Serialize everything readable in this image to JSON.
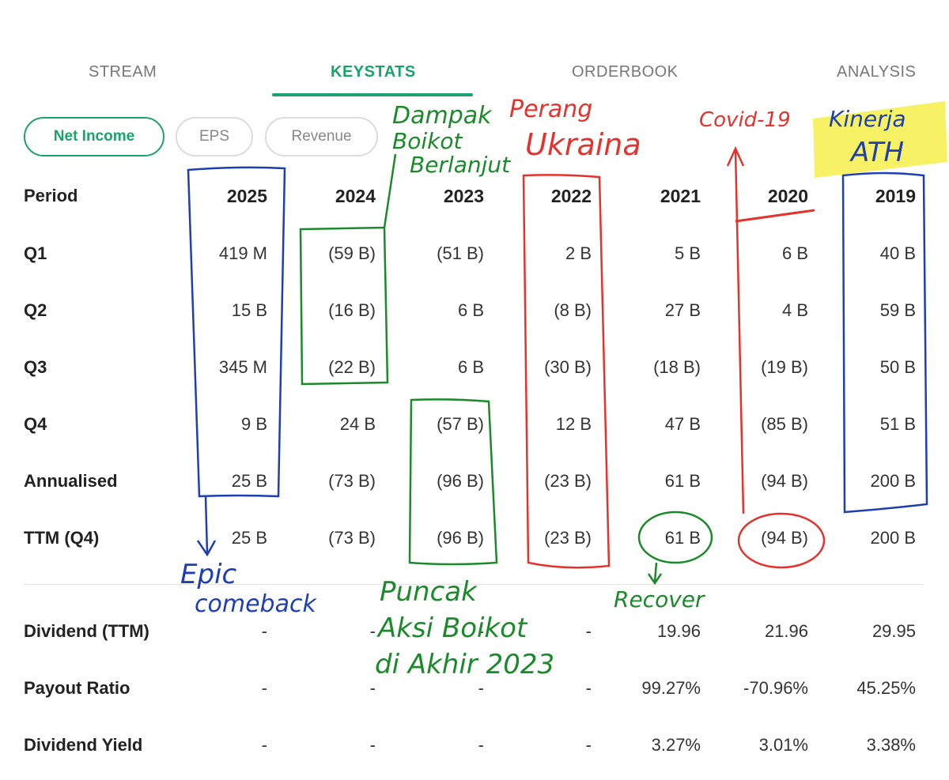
{
  "tabs": [
    {
      "label": "STREAM"
    },
    {
      "label": "KEYSTATS"
    },
    {
      "label": "ORDERBOOK"
    },
    {
      "label": "ANALYSIS"
    }
  ],
  "filters": [
    {
      "label": "Net Income"
    },
    {
      "label": "EPS"
    },
    {
      "label": "Revenue"
    }
  ],
  "table": {
    "period_header": "Period",
    "years": [
      "2025",
      "2024",
      "2023",
      "2022",
      "2021",
      "2020",
      "2019"
    ],
    "rows": [
      {
        "label": "Q1",
        "values": [
          "419 M",
          "(59 B)",
          "(51 B)",
          "2 B",
          "5 B",
          "6 B",
          "40 B"
        ]
      },
      {
        "label": "Q2",
        "values": [
          "15 B",
          "(16 B)",
          "6 B",
          "(8 B)",
          "27 B",
          "4 B",
          "59 B"
        ]
      },
      {
        "label": "Q3",
        "values": [
          "345 M",
          "(22 B)",
          "6 B",
          "(30 B)",
          "(18 B)",
          "(19 B)",
          "50 B"
        ]
      },
      {
        "label": "Q4",
        "values": [
          "9 B",
          "24 B",
          "(57 B)",
          "12 B",
          "47 B",
          "(85 B)",
          "51 B"
        ]
      },
      {
        "label": "Annualised",
        "values": [
          "25 B",
          "(73 B)",
          "(96 B)",
          "(23 B)",
          "61 B",
          "(94 B)",
          "200 B"
        ]
      },
      {
        "label": "TTM (Q4)",
        "values": [
          "25 B",
          "(73 B)",
          "(96 B)",
          "(23 B)",
          "61 B",
          "(94 B)",
          "200 B"
        ]
      }
    ]
  },
  "dividends": {
    "rows": [
      {
        "label": "Dividend (TTM)",
        "values": [
          "-",
          "-",
          "-",
          "-",
          "19.96",
          "21.96",
          "29.95"
        ]
      },
      {
        "label": "Payout Ratio",
        "values": [
          "-",
          "-",
          "-",
          "-",
          "99.27%",
          "-70.96%",
          "45.25%"
        ]
      },
      {
        "label": "Dividend Yield",
        "values": [
          "-",
          "-",
          "-",
          "-",
          "3.27%",
          "3.01%",
          "3.38%"
        ]
      }
    ]
  },
  "annotations": {
    "dampak_1": "Dampak",
    "dampak_2": "Boikot",
    "dampak_3": "Berlanjut",
    "perang_1": "Perang",
    "perang_2": "Ukraina",
    "covid": "Covid-19",
    "kinerja_1": "Kinerja",
    "kinerja_2": "ATH",
    "epic_1": "Epic",
    "epic_2": "comeback",
    "puncak_1": "Puncak",
    "puncak_2": "Aksi Boikot",
    "puncak_3": "di Akhir 2023",
    "recover": "Recover"
  },
  "colors": {
    "accent": "#1aa36b",
    "ink_blue": "#1f3fb0",
    "ink_green": "#1a8a2a",
    "ink_red": "#e5322d",
    "highlight": "#f6f04a"
  }
}
